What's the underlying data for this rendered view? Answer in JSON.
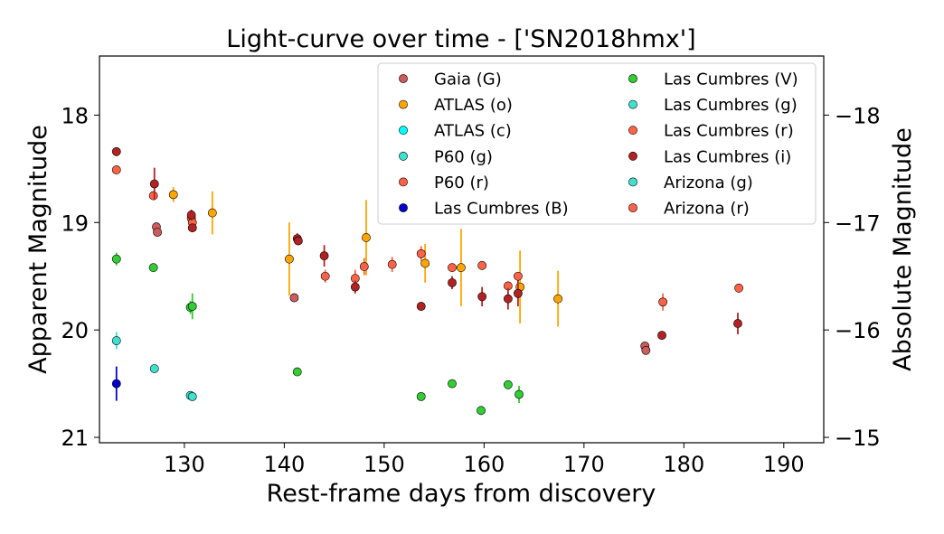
{
  "chart_data": {
    "type": "scatter",
    "title": "Light-curve over time - ['SN2018hmx']",
    "xlabel": "Rest-frame days from discovery",
    "ylabel": "Apparent Magnitude",
    "ylabel_right": "Absolute Magnitude",
    "xlim": [
      121.5,
      194
    ],
    "ylim": [
      21.05,
      17.45
    ],
    "y_inverted": true,
    "x_ticks": [
      "130",
      "140",
      "150",
      "160",
      "170",
      "180",
      "190"
    ],
    "y_ticks": [
      "18",
      "19",
      "20",
      "21"
    ],
    "y_right_ticks": [
      "−18",
      "−17",
      "−16",
      "−15"
    ],
    "y_right_tick_values": [
      18.0,
      19.0,
      20.0,
      21.0
    ],
    "grid": false,
    "legend_position": "top-right",
    "series": [
      {
        "name": "Gaia (G)",
        "color": "#cd5c5c",
        "points": [
          [
            127.2,
            19.04,
            0.04
          ],
          [
            127.3,
            19.09,
            0.04
          ],
          [
            141.0,
            19.7,
            0.04
          ],
          [
            176.1,
            20.15,
            0.04
          ],
          [
            176.2,
            20.19,
            0.04
          ]
        ]
      },
      {
        "name": "ATLAS (o)",
        "color": "#ffa500",
        "points": [
          [
            128.9,
            18.74,
            0.07
          ],
          [
            132.8,
            18.91,
            0.2
          ],
          [
            140.5,
            19.34,
            0.34
          ],
          [
            148.2,
            19.14,
            0.35
          ],
          [
            154.1,
            19.38,
            0.18
          ],
          [
            157.7,
            19.42,
            0.36
          ],
          [
            163.6,
            19.6,
            0.34
          ],
          [
            167.4,
            19.71,
            0.26
          ]
        ]
      },
      {
        "name": "ATLAS (c)",
        "color": "#00ffff",
        "points": []
      },
      {
        "name": "P60 (g)",
        "color": "#40e0d0",
        "points": [
          [
            123.2,
            20.1,
            0.08
          ]
        ]
      },
      {
        "name": "P60 (r)",
        "color": "#ff6347",
        "points": [
          [
            123.2,
            18.51,
            0.04
          ],
          [
            126.9,
            18.75,
            0.04
          ],
          [
            130.7,
            18.96,
            0.04
          ],
          [
            130.8,
            19.0,
            0.04
          ]
        ]
      },
      {
        "name": "Las Cumbres (B)",
        "color": "#0000cd",
        "points": [
          [
            123.2,
            20.5,
            0.16
          ]
        ]
      },
      {
        "name": "Las Cumbres (V)",
        "color": "#32cd32",
        "points": [
          [
            123.2,
            19.34,
            0.06
          ],
          [
            126.9,
            19.42,
            0.03
          ],
          [
            130.6,
            19.79,
            0.06
          ],
          [
            130.8,
            19.78,
            0.12
          ],
          [
            141.3,
            20.39,
            0.03
          ],
          [
            153.7,
            20.62,
            0.03
          ],
          [
            156.8,
            20.5,
            0.04
          ],
          [
            159.7,
            20.75,
            0.04
          ],
          [
            162.4,
            20.51,
            0.04
          ],
          [
            163.5,
            20.6,
            0.08
          ]
        ]
      },
      {
        "name": "Las Cumbres (g)",
        "color": "#40e0d0",
        "points": [
          [
            127.0,
            20.36,
            0.03
          ],
          [
            130.6,
            20.61,
            0.03
          ],
          [
            130.8,
            20.62,
            0.03
          ]
        ]
      },
      {
        "name": "Las Cumbres (r)",
        "color": "#ff6347",
        "points": [
          [
            144.1,
            19.5,
            0.06
          ],
          [
            147.1,
            19.52,
            0.08
          ],
          [
            148.0,
            19.41,
            0.08
          ],
          [
            150.8,
            19.39,
            0.07
          ],
          [
            153.7,
            19.29,
            0.07
          ],
          [
            156.8,
            19.42,
            0.04
          ],
          [
            159.8,
            19.4,
            0.04
          ],
          [
            162.4,
            19.59,
            0.04
          ],
          [
            163.4,
            19.5,
            0.04
          ],
          [
            177.9,
            19.74,
            0.08
          ],
          [
            185.5,
            19.61,
            0.03
          ]
        ]
      },
      {
        "name": "Las Cumbres (i)",
        "color": "#b22222",
        "points": [
          [
            123.2,
            18.34,
            0.04
          ],
          [
            127.0,
            18.64,
            0.15
          ],
          [
            130.7,
            18.93,
            0.05
          ],
          [
            130.8,
            19.05,
            0.04
          ],
          [
            141.3,
            19.15,
            0.05
          ],
          [
            141.4,
            19.17,
            0.04
          ],
          [
            144.0,
            19.31,
            0.1
          ],
          [
            147.1,
            19.6,
            0.06
          ],
          [
            153.7,
            19.78,
            0.04
          ],
          [
            156.8,
            19.56,
            0.06
          ],
          [
            159.8,
            19.69,
            0.09
          ],
          [
            162.4,
            19.71,
            0.1
          ],
          [
            163.4,
            19.66,
            0.12
          ],
          [
            177.8,
            20.05,
            0.04
          ],
          [
            185.4,
            19.94,
            0.1
          ]
        ]
      },
      {
        "name": "Arizona (g)",
        "color": "#40e0d0",
        "points": []
      },
      {
        "name": "Arizona (r)",
        "color": "#ff6347",
        "points": []
      }
    ]
  }
}
